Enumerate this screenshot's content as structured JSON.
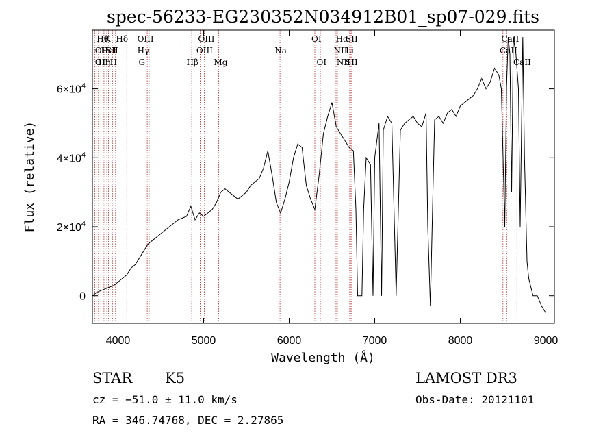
{
  "chart_data": {
    "type": "line",
    "title": "spec-56233-EG230352N034912B01_sp07-029.fits",
    "xlabel": "Wavelength (Å)",
    "ylabel": "Flux (relative)",
    "xlim": [
      3700,
      9100
    ],
    "ylim": [
      -8000,
      77000
    ],
    "x_ticks": [
      {
        "value": 4000,
        "label": "4000"
      },
      {
        "value": 5000,
        "label": "5000"
      },
      {
        "value": 6000,
        "label": "6000"
      },
      {
        "value": 7000,
        "label": "7000"
      },
      {
        "value": 8000,
        "label": "8000"
      },
      {
        "value": 9000,
        "label": "9000"
      }
    ],
    "y_ticks": [
      {
        "value": 0,
        "mant": "0",
        "exp": ""
      },
      {
        "value": 20000,
        "mant": "2×10",
        "exp": "4"
      },
      {
        "value": 40000,
        "mant": "4×10",
        "exp": "4"
      },
      {
        "value": 60000,
        "mant": "6×10",
        "exp": "4"
      }
    ],
    "grid": false,
    "series": [
      {
        "color": "#000000",
        "x": [
          3700,
          3750,
          3800,
          3850,
          3900,
          3950,
          4000,
          4050,
          4100,
          4150,
          4200,
          4250,
          4300,
          4350,
          4400,
          4450,
          4500,
          4550,
          4600,
          4650,
          4700,
          4750,
          4800,
          4850,
          4900,
          4950,
          5000,
          5050,
          5100,
          5150,
          5200,
          5250,
          5300,
          5350,
          5400,
          5450,
          5500,
          5550,
          5600,
          5650,
          5700,
          5750,
          5800,
          5850,
          5900,
          5950,
          6000,
          6050,
          6100,
          6150,
          6200,
          6250,
          6300,
          6350,
          6400,
          6450,
          6500,
          6550,
          6600,
          6650,
          6700,
          6750,
          6780,
          6800,
          6850,
          6870,
          6900,
          6950,
          6980,
          7000,
          7050,
          7080,
          7100,
          7150,
          7200,
          7250,
          7300,
          7350,
          7400,
          7450,
          7500,
          7550,
          7600,
          7620,
          7650,
          7680,
          7700,
          7750,
          7800,
          7850,
          7900,
          7950,
          8000,
          8050,
          8100,
          8150,
          8200,
          8250,
          8300,
          8350,
          8400,
          8450,
          8480,
          8500,
          8520,
          8540,
          8560,
          8580,
          8600,
          8620,
          8650,
          8680,
          8700,
          8730,
          8750,
          8780,
          8800,
          8850,
          8900,
          8950,
          9000
        ],
        "y": [
          0,
          1000,
          1500,
          2000,
          2500,
          3000,
          4000,
          5000,
          6000,
          8000,
          9000,
          11000,
          13000,
          15000,
          16000,
          17000,
          18000,
          19000,
          20000,
          21000,
          22000,
          22500,
          23000,
          26000,
          22000,
          24000,
          23000,
          24000,
          25000,
          27000,
          30000,
          31000,
          30000,
          29000,
          28000,
          29000,
          30000,
          32000,
          33000,
          34000,
          37000,
          42000,
          35000,
          27000,
          24000,
          28000,
          33000,
          40000,
          44000,
          43000,
          32000,
          28000,
          25000,
          35000,
          47000,
          52000,
          56000,
          49000,
          47000,
          45000,
          43000,
          42000,
          25000,
          0,
          0,
          25000,
          40000,
          38000,
          0,
          40000,
          50000,
          0,
          48000,
          52000,
          50000,
          0,
          48000,
          50000,
          51000,
          52000,
          50000,
          49000,
          53000,
          20000,
          -3000,
          30000,
          51000,
          52000,
          50000,
          53000,
          54000,
          52000,
          55000,
          56000,
          57000,
          58000,
          60000,
          63000,
          60000,
          62000,
          66000,
          64000,
          60000,
          40000,
          20000,
          60000,
          75000,
          70000,
          30000,
          75000,
          70000,
          60000,
          20000,
          75000,
          40000,
          10000,
          5000,
          0,
          0,
          -3000,
          -5000
        ]
      }
    ],
    "line_marks": [
      {
        "x": 3750,
        "row": 0,
        "label": "Hθ",
        "anchor": "start"
      },
      {
        "x": 3730,
        "row": 1,
        "label": "OII",
        "anchor": "start"
      },
      {
        "x": 3730,
        "row": 2,
        "label": "OII",
        "anchor": "start"
      },
      {
        "x": 3800,
        "row": 1,
        "label": "HeI",
        "anchor": "start"
      },
      {
        "x": 3770,
        "row": 2,
        "label": "Hη",
        "anchor": "start"
      },
      {
        "x": 3840,
        "row": 0,
        "label": "K",
        "anchor": "start"
      },
      {
        "x": 3860,
        "row": 1,
        "label": "SII",
        "anchor": "start"
      },
      {
        "x": 3905,
        "row": 2,
        "label": "H",
        "anchor": "start"
      },
      {
        "x": 3975,
        "row": 0,
        "label": "Hδ",
        "anchor": "start"
      },
      {
        "x": 4225,
        "row": 0,
        "label": "OIII",
        "anchor": "start"
      },
      {
        "x": 4225,
        "row": 1,
        "label": "Hγ",
        "anchor": "start"
      },
      {
        "x": 4240,
        "row": 2,
        "label": "G",
        "anchor": "start"
      },
      {
        "x": 4800,
        "row": 2,
        "label": "Hβ",
        "anchor": "start"
      },
      {
        "x": 4935,
        "row": 0,
        "label": "OIII",
        "anchor": "start"
      },
      {
        "x": 4915,
        "row": 1,
        "label": "OIII",
        "anchor": "start"
      },
      {
        "x": 5120,
        "row": 2,
        "label": "Mg",
        "anchor": "start"
      },
      {
        "x": 5830,
        "row": 1,
        "label": "Na",
        "anchor": "start"
      },
      {
        "x": 6260,
        "row": 0,
        "label": "OI",
        "anchor": "start"
      },
      {
        "x": 6320,
        "row": 2,
        "label": "OI",
        "anchor": "start"
      },
      {
        "x": 6545,
        "row": 0,
        "label": "Hα",
        "anchor": "start"
      },
      {
        "x": 6520,
        "row": 1,
        "label": "NII",
        "anchor": "start"
      },
      {
        "x": 6555,
        "row": 2,
        "label": "NII",
        "anchor": "start"
      },
      {
        "x": 6660,
        "row": 0,
        "label": "SII",
        "anchor": "start"
      },
      {
        "x": 6660,
        "row": 1,
        "label": "Li",
        "anchor": "start"
      },
      {
        "x": 6660,
        "row": 2,
        "label": "SII",
        "anchor": "start"
      },
      {
        "x": 8480,
        "row": 0,
        "label": "CaII",
        "anchor": "start"
      },
      {
        "x": 8460,
        "row": 1,
        "label": "CaII",
        "anchor": "start"
      },
      {
        "x": 8620,
        "row": 2,
        "label": "CaII",
        "anchor": "start"
      }
    ],
    "vlines": [
      3727,
      3750,
      3771,
      3798,
      3835,
      3869,
      3889,
      3934,
      3970,
      4102,
      4304,
      4341,
      4363,
      4861,
      4959,
      5007,
      5175,
      5893,
      6300,
      6364,
      6548,
      6563,
      6583,
      6707,
      6717,
      6731,
      8498,
      8542,
      8662
    ]
  },
  "info": {
    "object_type": "STAR",
    "subclass": "K5",
    "survey": "LAMOST DR3",
    "cz": "cz = −51.0 ± 11.0 km/s",
    "obs_date": "Obs-Date: 20121101",
    "radec": "RA = 346.74768, DEC =    2.27865"
  }
}
